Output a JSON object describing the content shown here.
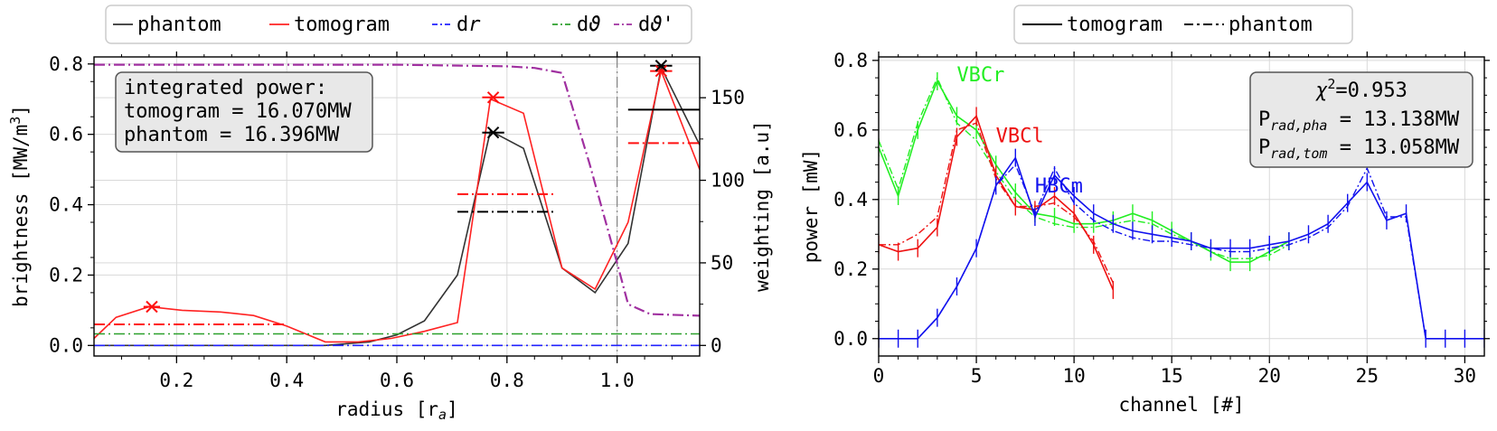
{
  "chart_data": [
    {
      "type": "line",
      "legend": {
        "placement": "top",
        "entries": [
          {
            "label": "phantom",
            "color": "#333333",
            "style": "solid"
          },
          {
            "label": "tomogram",
            "color": "#ff2222",
            "style": "solid"
          },
          {
            "label": "dr",
            "label_main": "d",
            "label_italic": "r",
            "color": "#2222ff",
            "style": "dashdot"
          },
          {
            "label": "dϑ",
            "label_main": "d",
            "label_italic": "ϑ",
            "color": "#2ca02c",
            "style": "dashdot"
          },
          {
            "label": "dϑ'",
            "label_main": "d",
            "label_italic": "ϑ",
            "label_suffix": "'",
            "color": "#a030a0",
            "style": "dashdot"
          }
        ]
      },
      "xlabel": {
        "main": "radius [r",
        "sub": "a",
        "close": "]"
      },
      "ylabel": {
        "main": "brightness [MW/m",
        "sup": "3",
        "close": "]"
      },
      "y2label": "weighting [a.u]",
      "xlim": [
        0.05,
        1.15
      ],
      "ylim": [
        -0.03,
        0.82
      ],
      "y2lim": [
        -6.4,
        174.7
      ],
      "xticks": [
        "0.2",
        "0.4",
        "0.6",
        "0.8",
        "1.0"
      ],
      "xtick_values": [
        0.2,
        0.4,
        0.6,
        0.8,
        1.0
      ],
      "yticks": [
        "0.0",
        "0.2",
        "0.4",
        "0.6",
        "0.8"
      ],
      "ytick_values": [
        0.0,
        0.2,
        0.4,
        0.6,
        0.8
      ],
      "y2ticks": [
        "0",
        "50",
        "100",
        "150"
      ],
      "y2tick_values": [
        0,
        50,
        100,
        150
      ],
      "grid": true,
      "vline_x": 1.0,
      "annotation": [
        "integrated power:",
        "tomogram = 16.070MW",
        "phantom = 16.396MW"
      ],
      "series": [
        {
          "name": "phantom",
          "color": "#333333",
          "x": [
            0.05,
            0.1,
            0.2,
            0.3,
            0.4,
            0.47,
            0.55,
            0.6,
            0.65,
            0.71,
            0.77,
            0.83,
            0.9,
            0.96,
            1.02,
            1.08,
            1.15
          ],
          "y": [
            0.0,
            0.0,
            0.0,
            0.0,
            0.0,
            0.0,
            0.01,
            0.03,
            0.07,
            0.2,
            0.61,
            0.56,
            0.22,
            0.15,
            0.29,
            0.79,
            0.57
          ]
        },
        {
          "name": "tomogram",
          "color": "#ff2222",
          "x": [
            0.05,
            0.09,
            0.15,
            0.21,
            0.28,
            0.34,
            0.4,
            0.47,
            0.53,
            0.59,
            0.65,
            0.71,
            0.77,
            0.83,
            0.9,
            0.96,
            1.02,
            1.08,
            1.15
          ],
          "y": [
            0.02,
            0.08,
            0.11,
            0.1,
            0.095,
            0.085,
            0.055,
            0.01,
            0.01,
            0.02,
            0.04,
            0.065,
            0.7,
            0.66,
            0.22,
            0.16,
            0.35,
            0.78,
            0.5
          ]
        },
        {
          "name": "dr",
          "color": "#2222ff",
          "x": [
            0.05,
            1.15
          ],
          "y": [
            0.0,
            0.0
          ]
        },
        {
          "name": "dϑ",
          "color": "#2ca02c",
          "x": [
            0.05,
            1.15
          ],
          "y": [
            0.033,
            0.033
          ]
        },
        {
          "name": "dϑ'",
          "color": "#a030a0",
          "axis": "right",
          "x": [
            0.05,
            0.4,
            0.6,
            0.8,
            0.85,
            0.9,
            0.95,
            1.0,
            1.02,
            1.06,
            1.15
          ],
          "y": [
            170,
            170,
            170,
            169,
            168,
            165,
            110,
            50,
            25,
            19,
            18
          ]
        }
      ],
      "markers": [
        {
          "series": "tomogram",
          "x": 0.155,
          "y": 0.11,
          "symbol": "x"
        },
        {
          "series": "tomogram",
          "x": 0.775,
          "y": 0.705,
          "symbol": "x"
        },
        {
          "series": "phantom",
          "x": 0.775,
          "y": 0.605,
          "symbol": "x"
        },
        {
          "series": "tomogram",
          "x": 1.08,
          "y": 0.78,
          "symbol": "x"
        },
        {
          "series": "phantom",
          "x": 1.08,
          "y": 0.795,
          "symbol": "x"
        }
      ],
      "segments": [
        {
          "series": "tomogram",
          "style": "solid",
          "x": [
            0.14,
            0.17
          ],
          "y": 0.11
        },
        {
          "series": "tomogram",
          "style": "dashdot",
          "x": [
            0.05,
            0.4
          ],
          "y": 0.06
        },
        {
          "series": "tomogram",
          "style": "solid",
          "x": [
            0.755,
            0.795
          ],
          "y": 0.705
        },
        {
          "series": "tomogram",
          "style": "dashdot",
          "x": [
            0.71,
            0.89
          ],
          "y": 0.43
        },
        {
          "series": "phantom",
          "style": "solid",
          "x": [
            0.755,
            0.795
          ],
          "y": 0.605
        },
        {
          "series": "phantom",
          "style": "dashdot",
          "x": [
            0.71,
            0.89
          ],
          "y": 0.38
        },
        {
          "series": "tomogram",
          "style": "solid",
          "x": [
            1.06,
            1.1
          ],
          "y": 0.78
        },
        {
          "series": "phantom",
          "style": "solid",
          "x": [
            1.06,
            1.1
          ],
          "y": 0.795
        },
        {
          "series": "phantom",
          "style": "solid",
          "x": [
            1.02,
            1.15
          ],
          "y": 0.67
        },
        {
          "series": "tomogram",
          "style": "dashdot",
          "x": [
            1.02,
            1.15
          ],
          "y": 0.575
        }
      ]
    },
    {
      "type": "line",
      "legend": {
        "placement": "top",
        "entries": [
          {
            "label": "tomogram",
            "color": "#000000",
            "style": "solid"
          },
          {
            "label": "phantom",
            "color": "#000000",
            "style": "dashdot"
          }
        ]
      },
      "xlabel": "channel [#]",
      "ylabel": "power [mW]",
      "xlim": [
        0,
        31
      ],
      "ylim": [
        -0.05,
        0.81
      ],
      "xticks": [
        "0",
        "5",
        "10",
        "15",
        "20",
        "25",
        "30"
      ],
      "xtick_values": [
        0,
        5,
        10,
        15,
        20,
        25,
        30
      ],
      "yticks": [
        "0.0",
        "0.2",
        "0.4",
        "0.6",
        "0.8"
      ],
      "ytick_values": [
        0.0,
        0.2,
        0.4,
        0.6,
        0.8
      ],
      "grid": true,
      "annotation": {
        "chi_symbol": "χ",
        "chi_sup": "2",
        "chi_value": "=0.953",
        "p_pha_main": "P",
        "p_pha_sub": "rad,pha",
        "p_pha_value": " = 13.138MW",
        "p_tom_main": "P",
        "p_tom_sub": "rad,tom",
        "p_tom_value": " = 13.058MW"
      },
      "labels": [
        {
          "text": "VBCr",
          "color": "#22ee22",
          "x": 4.0,
          "y": 0.74
        },
        {
          "text": "VBCl",
          "color": "#ee1111",
          "x": 6.0,
          "y": 0.565
        },
        {
          "text": "HBCm",
          "color": "#1111ee",
          "x": 8.0,
          "y": 0.42
        }
      ],
      "series": [
        {
          "name": "VBCr",
          "color": "#22ee22",
          "tomogram": {
            "x": [
              0,
              1,
              2,
              3,
              4,
              5,
              6,
              7,
              8,
              9,
              10,
              11,
              12,
              13,
              14,
              15,
              16,
              17,
              18,
              19,
              20,
              21
            ],
            "y": [
              0.55,
              0.41,
              0.6,
              0.74,
              0.64,
              0.6,
              0.5,
              0.42,
              0.36,
              0.35,
              0.33,
              0.33,
              0.34,
              0.36,
              0.34,
              0.31,
              0.28,
              0.25,
              0.22,
              0.22,
              0.25,
              0.28
            ]
          },
          "phantom": {
            "x": [
              0,
              1,
              2,
              3,
              4,
              5,
              6,
              7,
              8,
              9,
              10,
              11,
              12,
              13,
              14,
              15,
              16,
              17,
              18,
              19,
              20,
              21
            ],
            "y": [
              0.57,
              0.43,
              0.62,
              0.75,
              0.62,
              0.57,
              0.48,
              0.4,
              0.35,
              0.33,
              0.32,
              0.32,
              0.33,
              0.34,
              0.33,
              0.3,
              0.28,
              0.25,
              0.23,
              0.23,
              0.24,
              0.27
            ]
          }
        },
        {
          "name": "VBCl",
          "color": "#ee1111",
          "tomogram": {
            "x": [
              0,
              1,
              2,
              3,
              4,
              5,
              6,
              7,
              8,
              9,
              10,
              11,
              12
            ],
            "y": [
              0.27,
              0.25,
              0.26,
              0.32,
              0.58,
              0.64,
              0.47,
              0.38,
              0.37,
              0.41,
              0.36,
              0.27,
              0.14
            ]
          },
          "phantom": {
            "x": [
              0,
              1,
              2,
              3,
              4,
              5,
              6,
              7,
              8,
              9,
              10,
              11,
              12
            ],
            "y": [
              0.27,
              0.27,
              0.3,
              0.35,
              0.6,
              0.62,
              0.46,
              0.38,
              0.38,
              0.39,
              0.35,
              0.28,
              0.16
            ]
          }
        },
        {
          "name": "HBCm",
          "color": "#1111ee",
          "tomogram": {
            "x": [
              0,
              1,
              2,
              3,
              4,
              5,
              6,
              7,
              8,
              9,
              10,
              11,
              12,
              13,
              14,
              15,
              16,
              17,
              18,
              19,
              20,
              21,
              22,
              23,
              24,
              25,
              26,
              27,
              28,
              29,
              30,
              31
            ],
            "y": [
              0.0,
              0.0,
              0.0,
              0.06,
              0.15,
              0.26,
              0.44,
              0.52,
              0.35,
              0.47,
              0.41,
              0.36,
              0.33,
              0.31,
              0.3,
              0.29,
              0.28,
              0.26,
              0.26,
              0.26,
              0.27,
              0.28,
              0.3,
              0.33,
              0.39,
              0.45,
              0.34,
              0.36,
              0.0,
              0.0,
              0.0,
              0.0
            ]
          },
          "phantom": {
            "x": [
              0,
              1,
              2,
              3,
              4,
              5,
              6,
              7,
              8,
              9,
              10,
              11,
              12,
              13,
              14,
              15,
              16,
              17,
              18,
              19,
              20,
              21,
              22,
              23,
              24,
              25,
              26,
              27,
              28,
              29,
              30,
              31
            ],
            "y": [
              0.0,
              0.0,
              0.0,
              0.06,
              0.15,
              0.26,
              0.44,
              0.5,
              0.36,
              0.49,
              0.39,
              0.34,
              0.31,
              0.29,
              0.28,
              0.28,
              0.27,
              0.26,
              0.25,
              0.25,
              0.26,
              0.27,
              0.29,
              0.32,
              0.38,
              0.49,
              0.35,
              0.35,
              0.0,
              0.0,
              0.0,
              0.0
            ]
          }
        }
      ]
    }
  ]
}
